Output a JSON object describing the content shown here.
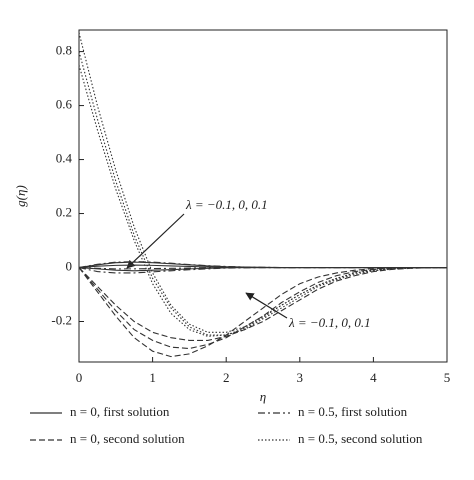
{
  "chart_data": {
    "type": "line",
    "y_label": "g(η)",
    "x_label": "η",
    "annotations": [
      "λ = −0.1, 0, 0.1",
      "λ = −0.1, 0, 0.1"
    ],
    "x": [
      0,
      0.25,
      0.5,
      0.75,
      1,
      1.25,
      1.5,
      1.75,
      2,
      2.25,
      2.5,
      2.75,
      3,
      3.25,
      3.5,
      3.75,
      4,
      4.25,
      4.5,
      4.75,
      5
    ],
    "xlim": [
      0,
      5
    ],
    "xticks": [
      0,
      1,
      2,
      3,
      4,
      5
    ],
    "ylim": [
      -0.35,
      0.88
    ],
    "yticks": [
      -0.2,
      0,
      0.2,
      0.4,
      0.6,
      0.8
    ],
    "series": [
      {
        "name": "n = 0, first solution",
        "color": "#333333",
        "dash": "solid",
        "curves": [
          {
            "values": [
              0,
              0.01,
              0.018,
              0.02,
              0.018,
              0.014,
              0.01,
              0.006,
              0.003,
              0.002,
              0.001,
              0,
              0,
              0,
              0,
              0,
              0,
              0,
              0,
              0,
              0
            ]
          },
          {
            "values": [
              0,
              0.005,
              0.008,
              0.009,
              0.008,
              0.006,
              0.004,
              0.002,
              0.001,
              0,
              0,
              0,
              0,
              0,
              0,
              0,
              0,
              0,
              0,
              0,
              0
            ]
          },
          {
            "values": [
              0,
              -0.005,
              -0.01,
              -0.012,
              -0.01,
              -0.008,
              -0.005,
              -0.003,
              -0.001,
              0,
              0,
              0,
              0,
              0,
              0,
              0,
              0,
              0,
              0,
              0,
              0
            ]
          }
        ]
      },
      {
        "name": "n = 0, second solution",
        "color": "#333333",
        "dash": "dashed",
        "curves": [
          {
            "values": [
              0,
              -0.09,
              -0.18,
              -0.26,
              -0.31,
              -0.33,
              -0.32,
              -0.29,
              -0.25,
              -0.2,
              -0.15,
              -0.1,
              -0.06,
              -0.035,
              -0.02,
              -0.01,
              -0.004,
              -0.002,
              0,
              0,
              0
            ]
          },
          {
            "values": [
              0,
              -0.08,
              -0.16,
              -0.23,
              -0.27,
              -0.295,
              -0.3,
              -0.285,
              -0.26,
              -0.22,
              -0.18,
              -0.13,
              -0.09,
              -0.055,
              -0.03,
              -0.015,
              -0.007,
              -0.003,
              -0.001,
              0,
              0
            ]
          },
          {
            "values": [
              0,
              -0.07,
              -0.14,
              -0.2,
              -0.24,
              -0.26,
              -0.27,
              -0.27,
              -0.255,
              -0.23,
              -0.2,
              -0.16,
              -0.12,
              -0.08,
              -0.05,
              -0.03,
              -0.015,
              -0.007,
              -0.003,
              -0.001,
              0
            ]
          }
        ]
      },
      {
        "name": "n = 0.5, first solution",
        "color": "#333333",
        "dash": "dashdot",
        "curves": [
          {
            "values": [
              0,
              0.012,
              0.02,
              0.022,
              0.02,
              0.016,
              0.011,
              0.007,
              0.004,
              0.002,
              0.001,
              0,
              0,
              0,
              0,
              0,
              0,
              0,
              0,
              0,
              0
            ]
          },
          {
            "values": [
              0,
              -0.003,
              -0.005,
              -0.005,
              -0.004,
              -0.003,
              -0.002,
              -0.001,
              0,
              0,
              0,
              0,
              0,
              0,
              0,
              0,
              0,
              0,
              0,
              0,
              0
            ]
          },
          {
            "values": [
              0,
              -0.015,
              -0.02,
              -0.02,
              -0.016,
              -0.012,
              -0.008,
              -0.005,
              -0.002,
              -0.001,
              0,
              0,
              0,
              0,
              0,
              0,
              0,
              0,
              0,
              0,
              0
            ]
          }
        ]
      },
      {
        "name": "n = 0.5, second solution",
        "color": "#333333",
        "dash": "dotted",
        "curves": [
          {
            "values": [
              0.87,
              0.6,
              0.36,
              0.15,
              -0.02,
              -0.14,
              -0.21,
              -0.24,
              -0.24,
              -0.22,
              -0.18,
              -0.14,
              -0.1,
              -0.065,
              -0.04,
              -0.02,
              -0.01,
              -0.005,
              -0.002,
              0,
              0
            ]
          },
          {
            "values": [
              0.8,
              0.55,
              0.32,
              0.12,
              -0.04,
              -0.15,
              -0.22,
              -0.25,
              -0.25,
              -0.23,
              -0.19,
              -0.15,
              -0.11,
              -0.07,
              -0.045,
              -0.025,
              -0.012,
              -0.006,
              -0.002,
              -0.001,
              0
            ]
          },
          {
            "values": [
              0.75,
              0.51,
              0.29,
              0.1,
              -0.06,
              -0.17,
              -0.23,
              -0.255,
              -0.25,
              -0.225,
              -0.185,
              -0.14,
              -0.1,
              -0.065,
              -0.04,
              -0.02,
              -0.01,
              -0.005,
              -0.002,
              0,
              0
            ]
          }
        ]
      }
    ]
  }
}
